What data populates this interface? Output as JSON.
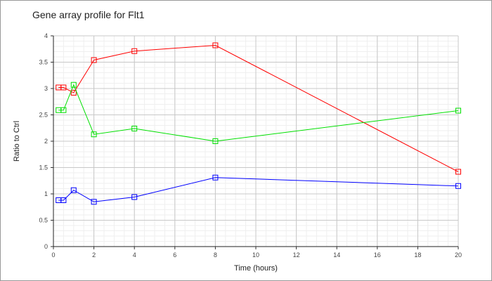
{
  "chart_data": {
    "type": "line",
    "title": "Gene array profile for Flt1",
    "xlabel": "Time (hours)",
    "ylabel": "Ratio to Ctrl",
    "xlim": [
      0,
      20
    ],
    "ylim": [
      0,
      4
    ],
    "xticks": [
      0,
      2,
      4,
      6,
      8,
      10,
      12,
      14,
      16,
      18,
      20
    ],
    "yticks": [
      0,
      0.5,
      1,
      1.5,
      2,
      2.5,
      3,
      3.5,
      4
    ],
    "grid": true,
    "legend": "none",
    "series": [
      {
        "name": "red",
        "color": "#ff0000",
        "x": [
          0.25,
          0.5,
          1,
          2,
          4,
          8,
          20
        ],
        "y": [
          3.02,
          3.02,
          2.92,
          3.54,
          3.71,
          3.82,
          1.42
        ]
      },
      {
        "name": "green",
        "color": "#00e000",
        "x": [
          0.25,
          0.5,
          1,
          2,
          4,
          8,
          20
        ],
        "y": [
          2.59,
          2.59,
          3.07,
          2.13,
          2.24,
          2.0,
          2.58
        ]
      },
      {
        "name": "blue",
        "color": "#0000ff",
        "x": [
          0.25,
          0.5,
          1,
          2,
          4,
          8,
          20
        ],
        "y": [
          0.88,
          0.88,
          1.07,
          0.85,
          0.94,
          1.31,
          1.15
        ]
      }
    ]
  }
}
